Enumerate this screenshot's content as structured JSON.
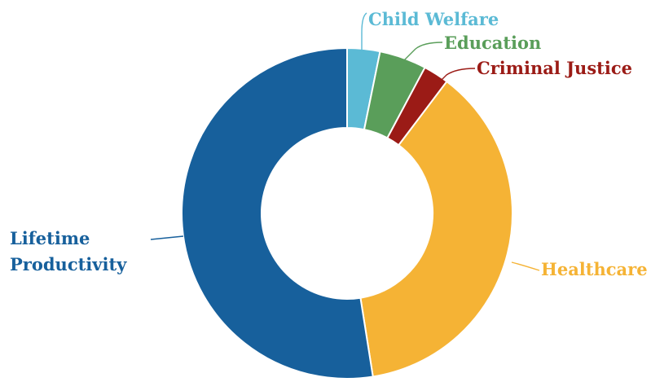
{
  "chart_data": {
    "type": "pie",
    "donut": true,
    "title": "",
    "slices": [
      {
        "label": "Child Welfare",
        "value": 3.2,
        "color": "#5bbad5"
      },
      {
        "label": "Education",
        "value": 4.6,
        "color": "#5a9e5a"
      },
      {
        "label": "Criminal Justice",
        "value": 2.5,
        "color": "#9b1b16"
      },
      {
        "label": "Healthcare",
        "value": 37.2,
        "color": "#f5b335"
      },
      {
        "label": "Lifetime Productivity",
        "value": 52.5,
        "color": "#17609c"
      }
    ],
    "legend": "none",
    "labels_placement": "outside with leader lines"
  }
}
